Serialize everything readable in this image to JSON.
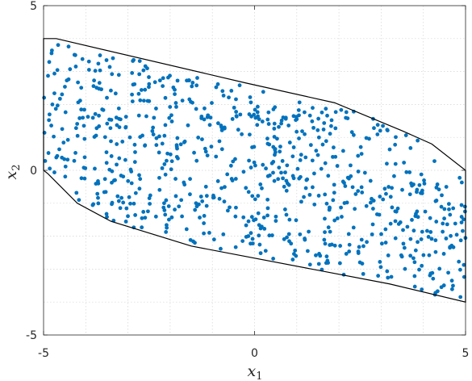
{
  "chart_data": {
    "type": "scatter",
    "title": "",
    "xlabel": "x",
    "xlabel_sub": "1",
    "ylabel": "x",
    "ylabel_sub": "2",
    "xlim": [
      -5,
      5
    ],
    "ylim": [
      -5,
      5
    ],
    "xticks": [
      -5,
      0,
      5
    ],
    "yticks": [
      -5,
      0,
      5
    ],
    "xtick_labels": [
      "-5",
      "0",
      "5"
    ],
    "ytick_labels": [
      "-5",
      "0",
      "5"
    ],
    "grid": true,
    "grid_style": "dotted",
    "grid_step": 1,
    "legend": false,
    "colors": {
      "points": "#0072BD",
      "hull": "#000000",
      "axes": "#262626",
      "grid": "#d4d4d4"
    },
    "series": [
      {
        "kind": "points",
        "count": 800,
        "note_on_data": "points uniformly fill the hull polygon below"
      },
      {
        "kind": "hull",
        "vertices": [
          [
            -5,
            4.0
          ],
          [
            -4.7,
            4.0
          ],
          [
            -0.2,
            2.65
          ],
          [
            1.9,
            2.05
          ],
          [
            3.5,
            1.2
          ],
          [
            4.2,
            0.8
          ],
          [
            5,
            0.0
          ],
          [
            5,
            -4.0
          ],
          [
            3.2,
            -3.45
          ],
          [
            -1.5,
            -2.3
          ],
          [
            -3.4,
            -1.55
          ],
          [
            -4.2,
            -1.0
          ],
          [
            -4.9,
            -0.1
          ],
          [
            -5,
            0.0
          ]
        ]
      }
    ]
  }
}
